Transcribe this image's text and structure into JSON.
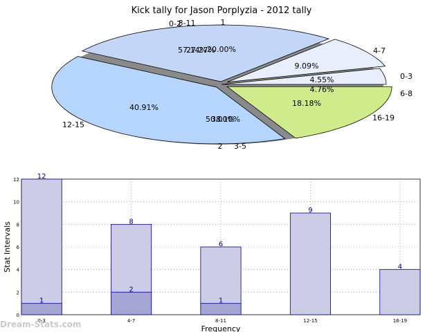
{
  "chart_data": [
    {
      "type": "pie",
      "title": "Kick tally for Jason Porplyzia - 2012 tally",
      "slices": [
        {
          "label": "0-3",
          "value": 4.55,
          "pct_label": "4.55%",
          "color": "#e8eefb"
        },
        {
          "label": "4-7",
          "value": 9.09,
          "pct_label": "9.09%",
          "color": "#e8eefb"
        },
        {
          "label": "8-11",
          "value": 27.27,
          "pct_label": "27.27%",
          "color": "#c4d6f7"
        },
        {
          "label": "12-15",
          "value": 40.91,
          "pct_label": "40.91%",
          "color": "#b5d5fd"
        },
        {
          "label": "16-19",
          "value": 18.18,
          "pct_label": "18.18%",
          "color": "#cfeb8c"
        }
      ],
      "annotations": [
        {
          "label": "1",
          "text": "20.00%"
        },
        {
          "label": "0-2",
          "text": "57.14%"
        },
        {
          "label": "6-8",
          "text": "4.76%"
        },
        {
          "label": "2",
          "text": "50.00%"
        },
        {
          "label": "3-5",
          "text": "38.10%"
        }
      ]
    },
    {
      "type": "bar",
      "xlabel": "Frequency",
      "ylabel": "Stat Intervals",
      "categories": [
        "0-3",
        "4-7",
        "8-11",
        "12-15",
        "16-19"
      ],
      "ylim": [
        0,
        12
      ],
      "yticks": [
        0,
        2,
        4,
        6,
        8,
        10,
        12
      ],
      "grid": true,
      "series": [
        {
          "values": [
            12,
            8,
            6,
            9,
            4
          ],
          "color": "#cccce6"
        },
        {
          "values": [
            1,
            2,
            1,
            null,
            null
          ],
          "color": "#a6a6d4"
        }
      ]
    }
  ],
  "watermark": "Dream-Stats.com"
}
